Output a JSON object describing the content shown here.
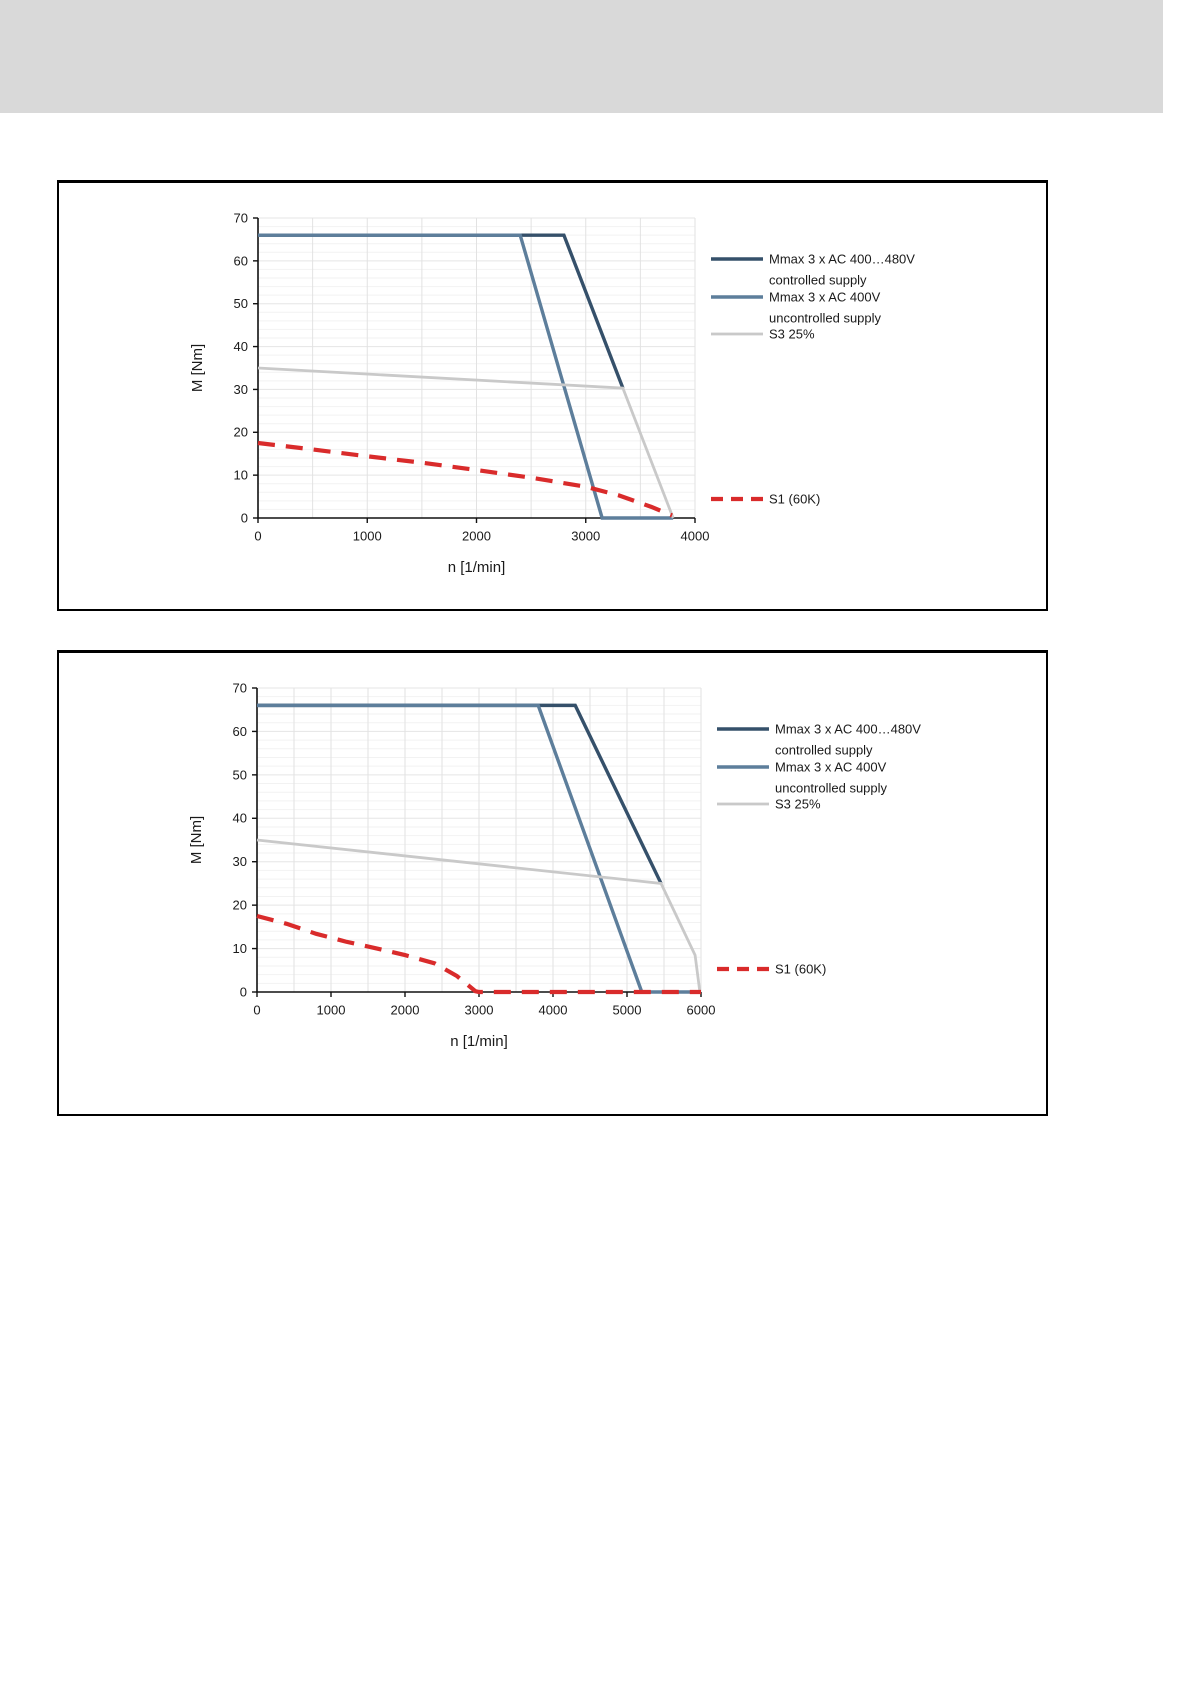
{
  "page": {
    "background": "#ffffff",
    "header_band": {
      "color": "#d9d9d9"
    }
  },
  "chart_data": [
    {
      "type": "line",
      "title": "",
      "xlabel": "n [1/min]",
      "ylabel": "M [Nm]",
      "xlim": [
        0,
        4000
      ],
      "ylim": [
        0,
        70
      ],
      "xtick_step": 1000,
      "ytick_step": 10,
      "x_minor_step": 500,
      "y_minor_step": 2,
      "grid": true,
      "legend_position": "right",
      "text_color": "#1a1a1a",
      "series": [
        {
          "name": "Mmax 3 x AC 400…480V",
          "name2": "controlled supply",
          "color": "#35506A",
          "width": 3.4,
          "dash": null,
          "points": [
            [
              0,
              66
            ],
            [
              2800,
              66
            ],
            [
              3340,
              30.3
            ]
          ]
        },
        {
          "name": "Mmax 3 x AC 400V",
          "name2": "uncontrolled supply",
          "color": "#5D7E9B",
          "width": 3.4,
          "dash": null,
          "points": [
            [
              0,
              66
            ],
            [
              2400,
              66
            ],
            [
              3150,
              0
            ],
            [
              3800,
              0
            ]
          ]
        },
        {
          "name": "S3 25%",
          "name2": null,
          "color": "#C9C9C9",
          "width": 2.8,
          "dash": null,
          "points": [
            [
              0,
              35
            ],
            [
              3340,
              30.3
            ],
            [
              3800,
              0
            ]
          ]
        },
        {
          "name": "S1 (60K)",
          "name2": null,
          "color": "#D92B2B",
          "width": 4.2,
          "dash": [
            17,
            11
          ],
          "points": [
            [
              0,
              17.5
            ],
            [
              500,
              16
            ],
            [
              1000,
              14.4
            ],
            [
              1500,
              12.9
            ],
            [
              2000,
              11.2
            ],
            [
              2500,
              9.4
            ],
            [
              3000,
              7.3
            ],
            [
              3300,
              5.3
            ],
            [
              3600,
              2.6
            ],
            [
              3790,
              0.6
            ]
          ]
        }
      ]
    },
    {
      "type": "line",
      "title": "",
      "xlabel": "n [1/min]",
      "ylabel": "M [Nm]",
      "xlim": [
        0,
        6000
      ],
      "ylim": [
        0,
        70
      ],
      "xtick_step": 1000,
      "ytick_step": 10,
      "x_minor_step": 500,
      "y_minor_step": 2,
      "grid": true,
      "legend_position": "right",
      "text_color": "#1a1a1a",
      "series": [
        {
          "name": "Mmax 3 x AC 400…480V",
          "name2": "controlled supply",
          "color": "#35506A",
          "width": 3.4,
          "dash": null,
          "points": [
            [
              0,
              66
            ],
            [
              4300,
              66
            ],
            [
              5460,
              25
            ]
          ]
        },
        {
          "name": "Mmax 3 x AC 400V",
          "name2": "uncontrolled supply",
          "color": "#5D7E9B",
          "width": 3.4,
          "dash": null,
          "points": [
            [
              0,
              66
            ],
            [
              3800,
              66
            ],
            [
              5200,
              0
            ],
            [
              6000,
              0
            ]
          ]
        },
        {
          "name": "S3 25%",
          "name2": null,
          "color": "#C9C9C9",
          "width": 2.8,
          "dash": null,
          "points": [
            [
              0,
              35
            ],
            [
              5460,
              25
            ],
            [
              5920,
              8.5
            ],
            [
              5985,
              0
            ]
          ]
        },
        {
          "name": "S1 (60K)",
          "name2": null,
          "color": "#D92B2B",
          "width": 4.2,
          "dash": [
            17,
            11
          ],
          "points": [
            [
              0,
              17.5
            ],
            [
              400,
              15.7
            ],
            [
              800,
              13.4
            ],
            [
              1200,
              11.6
            ],
            [
              1600,
              10.1
            ],
            [
              2000,
              8.5
            ],
            [
              2400,
              6.6
            ],
            [
              2700,
              3.7
            ],
            [
              2950,
              0.2
            ],
            [
              3000,
              0
            ],
            [
              6000,
              0
            ]
          ]
        }
      ]
    }
  ]
}
